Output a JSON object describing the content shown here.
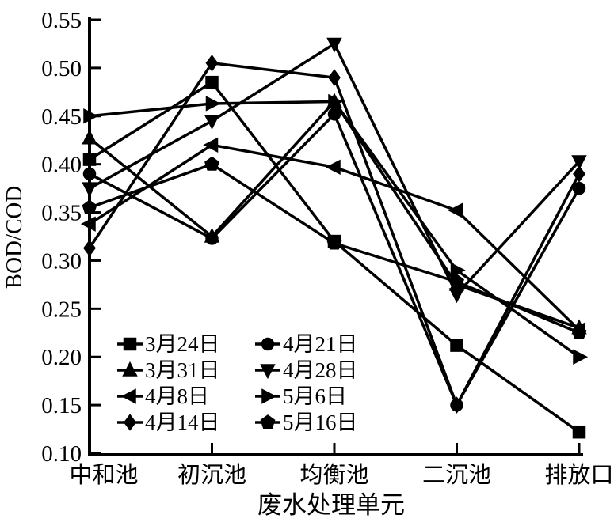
{
  "chart_data": {
    "type": "line",
    "title": "",
    "xlabel": "废水处理单元",
    "ylabel": "BOD/COD",
    "categories": [
      "中和池",
      "初沉池",
      "均衡池",
      "二沉池",
      "排放口"
    ],
    "ylim": [
      0.1,
      0.55
    ],
    "ytick_labels": [
      "0.10",
      "0.15",
      "0.20",
      "0.25",
      "0.30",
      "0.35",
      "0.40",
      "0.45",
      "0.50",
      "0.55"
    ],
    "grid": false,
    "line_color": "#000000",
    "background": "#ffffff",
    "legend": {
      "position": "inside-bottom-left",
      "columns": [
        [
          "3月24日",
          "3月31日",
          "4月8日",
          "4月14日"
        ],
        [
          "4月21日",
          "4月28日",
          "5月6日",
          "5月16日"
        ]
      ]
    },
    "series": [
      {
        "name": "3月24日",
        "marker": "square",
        "values": [
          0.405,
          0.485,
          0.32,
          0.212,
          0.122
        ]
      },
      {
        "name": "3月31日",
        "marker": "triangle-up",
        "values": [
          0.427,
          0.325,
          0.465,
          0.275,
          0.23
        ]
      },
      {
        "name": "4月8日",
        "marker": "triangle-left",
        "values": [
          0.338,
          0.42,
          0.397,
          0.352,
          0.228
        ]
      },
      {
        "name": "4月14日",
        "marker": "diamond",
        "values": [
          0.313,
          0.505,
          0.49,
          0.15,
          0.39
        ]
      },
      {
        "name": "4月21日",
        "marker": "circle",
        "values": [
          0.39,
          0.323,
          0.452,
          0.15,
          0.375
        ]
      },
      {
        "name": "4月28日",
        "marker": "triangle-down",
        "values": [
          0.375,
          0.445,
          0.525,
          0.265,
          0.403
        ]
      },
      {
        "name": "5月6日",
        "marker": "triangle-right",
        "values": [
          0.45,
          0.463,
          0.465,
          0.29,
          0.2
        ]
      },
      {
        "name": "5月16日",
        "marker": "pentagon",
        "values": [
          0.355,
          0.4,
          0.318,
          0.278,
          0.225
        ]
      }
    ]
  }
}
